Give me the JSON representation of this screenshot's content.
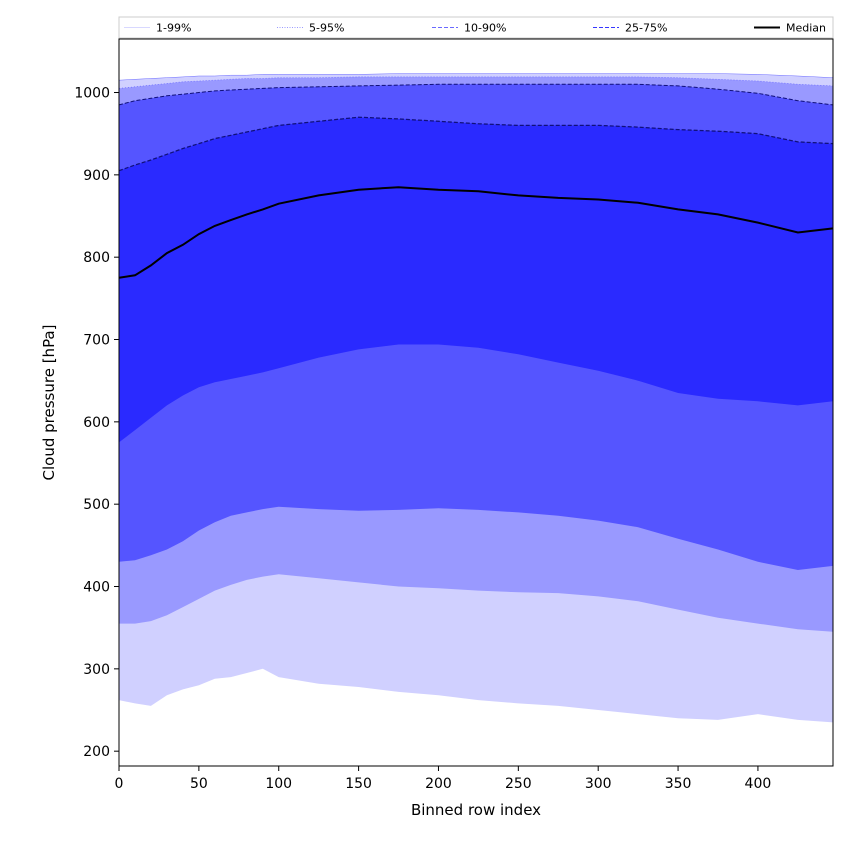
{
  "chart_data": {
    "type": "area",
    "xlabel": "Binned row index",
    "ylabel": "Cloud pressure [hPa]",
    "xlim": [
      0,
      447
    ],
    "ylim": [
      182,
      1065
    ],
    "x_ticks": [
      0,
      50,
      100,
      150,
      200,
      250,
      300,
      350,
      400
    ],
    "y_ticks": [
      200,
      300,
      400,
      500,
      600,
      700,
      800,
      900,
      1000
    ],
    "grid": false,
    "legend_position": "top",
    "x": [
      0,
      10,
      20,
      30,
      40,
      50,
      60,
      70,
      80,
      90,
      100,
      125,
      150,
      175,
      200,
      225,
      250,
      275,
      300,
      325,
      350,
      375,
      400,
      425,
      447
    ],
    "bands": [
      {
        "name": "1-99%",
        "color": "#d0d0ff",
        "lower": [
          262,
          258,
          255,
          268,
          275,
          280,
          288,
          290,
          295,
          300,
          290,
          282,
          278,
          272,
          268,
          262,
          258,
          255,
          250,
          245,
          240,
          238,
          245,
          238,
          235
        ],
        "upper": [
          1015,
          1016,
          1017,
          1018,
          1019,
          1020,
          1020,
          1021,
          1021,
          1022,
          1022,
          1022,
          1022,
          1023,
          1023,
          1023,
          1023,
          1023,
          1023,
          1023,
          1023,
          1023,
          1022,
          1020,
          1018
        ]
      },
      {
        "name": "5-95%",
        "color": "#9999ff",
        "lower": [
          355,
          355,
          358,
          365,
          375,
          385,
          395,
          402,
          408,
          412,
          415,
          410,
          405,
          400,
          398,
          395,
          393,
          392,
          388,
          382,
          372,
          362,
          355,
          348,
          345
        ],
        "upper": [
          1005,
          1007,
          1009,
          1011,
          1013,
          1014,
          1015,
          1016,
          1017,
          1017,
          1018,
          1018,
          1019,
          1019,
          1019,
          1019,
          1019,
          1019,
          1019,
          1019,
          1018,
          1016,
          1014,
          1010,
          1008
        ]
      },
      {
        "name": "10-90%",
        "color": "#5555ff",
        "lower": [
          430,
          432,
          438,
          445,
          455,
          468,
          478,
          486,
          490,
          494,
          497,
          494,
          492,
          493,
          495,
          493,
          490,
          486,
          480,
          472,
          458,
          445,
          430,
          420,
          425
        ],
        "upper": [
          985,
          990,
          993,
          996,
          998,
          1000,
          1002,
          1003,
          1004,
          1005,
          1006,
          1007,
          1008,
          1009,
          1010,
          1010,
          1010,
          1010,
          1010,
          1010,
          1008,
          1004,
          999,
          990,
          985
        ]
      },
      {
        "name": "25-75%",
        "color": "#2a2aff",
        "lower": [
          575,
          590,
          605,
          620,
          632,
          642,
          648,
          652,
          656,
          660,
          665,
          678,
          688,
          694,
          694,
          690,
          682,
          672,
          662,
          650,
          635,
          628,
          625,
          620,
          625
        ],
        "upper": [
          905,
          912,
          918,
          925,
          932,
          938,
          944,
          948,
          952,
          956,
          960,
          965,
          970,
          968,
          965,
          962,
          960,
          960,
          960,
          958,
          955,
          953,
          950,
          940,
          938
        ]
      }
    ],
    "median": {
      "name": "Median",
      "color": "#000000",
      "values": [
        775,
        778,
        790,
        805,
        815,
        828,
        838,
        845,
        852,
        858,
        865,
        875,
        882,
        885,
        882,
        880,
        875,
        872,
        870,
        866,
        858,
        852,
        842,
        830,
        835
      ]
    },
    "legend": [
      {
        "label": "1-99%",
        "style": "solid-thin",
        "color": "#d8d8ff"
      },
      {
        "label": "5-95%",
        "style": "dotted",
        "color": "#9a9aff"
      },
      {
        "label": "10-90%",
        "style": "dashed",
        "color": "#6a6aff"
      },
      {
        "label": "25-75%",
        "style": "dashed",
        "color": "#3636ff"
      },
      {
        "label": "Median",
        "style": "solid-thick",
        "color": "#000000"
      }
    ]
  }
}
